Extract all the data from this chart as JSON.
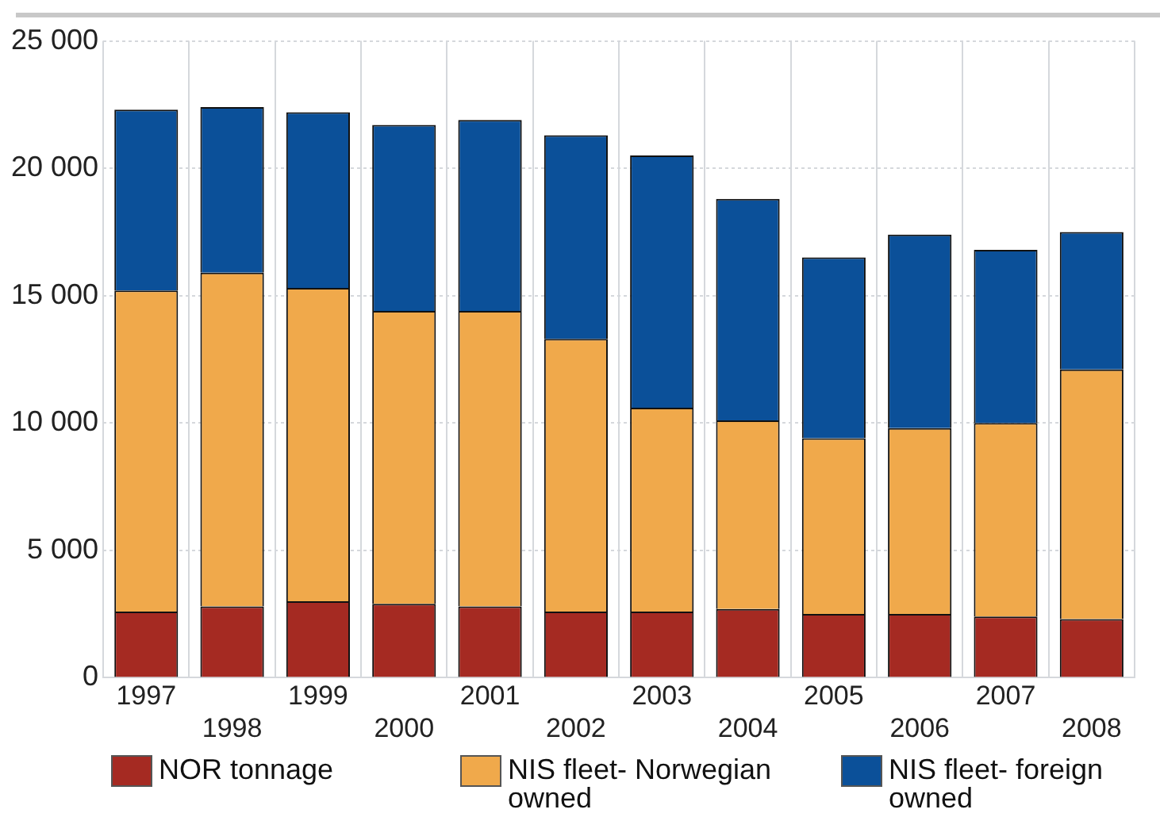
{
  "chart_data": {
    "type": "bar",
    "stacked": true,
    "categories": [
      "1997",
      "1998",
      "1999",
      "2000",
      "2001",
      "2002",
      "2003",
      "2004",
      "2005",
      "2006",
      "2007",
      "2008"
    ],
    "series": [
      {
        "name": "NOR tonnage",
        "color": "#a52a22",
        "values": [
          2600,
          2800,
          3000,
          2900,
          2800,
          2600,
          2600,
          2700,
          2500,
          2500,
          2400,
          2300
        ]
      },
      {
        "name": "NIS fleet- Norwegian owned",
        "color": "#f0a94b",
        "values": [
          12600,
          13100,
          12300,
          11500,
          11600,
          10700,
          8000,
          7400,
          6900,
          7300,
          7600,
          9800
        ]
      },
      {
        "name": "NIS fleet- foreign owned",
        "color": "#0b5099",
        "values": [
          7100,
          6500,
          6900,
          7300,
          7500,
          8000,
          9900,
          8700,
          7100,
          7600,
          6800,
          5400
        ]
      }
    ],
    "ylim": [
      0,
      25000
    ],
    "yticks": [
      0,
      {
        "value": 5000,
        "label": "5 000"
      },
      {
        "value": 10000,
        "label": "10 000"
      },
      {
        "value": 15000,
        "label": "15 000"
      },
      {
        "value": 20000,
        "label": "20 000"
      },
      {
        "value": 25000,
        "label": "25 000"
      }
    ],
    "grid": true,
    "legend": "bottom"
  }
}
